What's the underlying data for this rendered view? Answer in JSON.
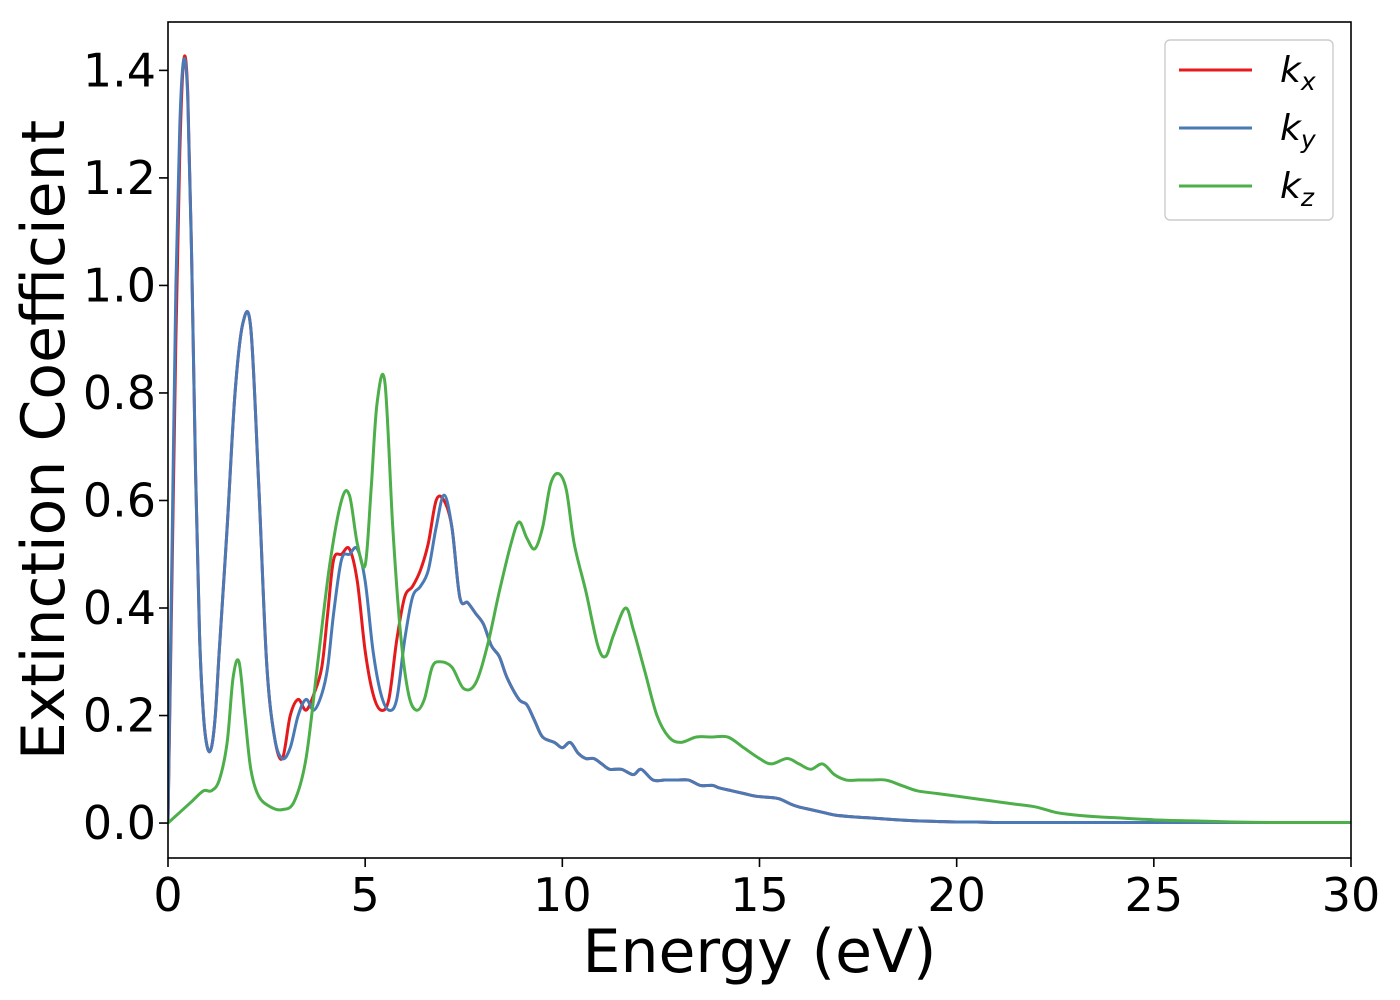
{
  "chart_data": {
    "type": "line",
    "title": "",
    "xlabel": "Energy (eV)",
    "ylabel": "Extinction Coefficient",
    "xlim": [
      0,
      30
    ],
    "ylim": [
      -0.065,
      1.49
    ],
    "xticks": [
      0,
      5,
      10,
      15,
      20,
      25,
      30
    ],
    "xtick_labels": [
      "0",
      "5",
      "10",
      "15",
      "20",
      "25",
      "30"
    ],
    "yticks": [
      0.0,
      0.2,
      0.4,
      0.6,
      0.8,
      1.0,
      1.2,
      1.4
    ],
    "ytick_labels": [
      "0.0",
      "0.2",
      "0.4",
      "0.6",
      "0.8",
      "1.0",
      "1.2",
      "1.4"
    ],
    "grid": false,
    "legend_position": "top-right",
    "series": [
      {
        "name": "k_x",
        "legend_base": "k",
        "legend_sub": "x",
        "color": "#e41a1c",
        "x": [
          0,
          0.1,
          0.2,
          0.3,
          0.4,
          0.5,
          0.6,
          0.7,
          0.8,
          0.9,
          1.0,
          1.1,
          1.2,
          1.3,
          1.5,
          1.7,
          1.9,
          2.1,
          2.3,
          2.5,
          2.7,
          2.9,
          3.1,
          3.3,
          3.5,
          3.7,
          3.9,
          4.05,
          4.2,
          4.4,
          4.6,
          4.8,
          5.0,
          5.2,
          5.4,
          5.6,
          5.8,
          6.0,
          6.2,
          6.4,
          6.6,
          6.8,
          7.0,
          7.2,
          7.4,
          7.6,
          7.8,
          8.0,
          8.2,
          8.4,
          8.6,
          8.9,
          9.1,
          9.3,
          9.5,
          9.8,
          10.0,
          10.2,
          10.4,
          10.6,
          10.8,
          11.0,
          11.2,
          11.5,
          11.8,
          12.0,
          12.3,
          12.6,
          12.9,
          13.2,
          13.5,
          13.8,
          14.0,
          14.3,
          14.6,
          14.9,
          15.2,
          15.5,
          15.8,
          16.0,
          16.3,
          16.6,
          16.9,
          17.3,
          17.7,
          18.1,
          18.5,
          19.0,
          19.5,
          20.0,
          20.5,
          21.0,
          21.5,
          22.0,
          22.5,
          23.0,
          24.0,
          25.0,
          26.0,
          27.0,
          28.0,
          29.0,
          30.0
        ],
        "values": [
          0.0,
          0.45,
          0.9,
          1.25,
          1.42,
          1.36,
          1.05,
          0.65,
          0.35,
          0.2,
          0.14,
          0.14,
          0.2,
          0.32,
          0.55,
          0.8,
          0.93,
          0.92,
          0.63,
          0.3,
          0.16,
          0.12,
          0.2,
          0.23,
          0.21,
          0.24,
          0.29,
          0.39,
          0.49,
          0.5,
          0.51,
          0.45,
          0.32,
          0.24,
          0.21,
          0.23,
          0.34,
          0.42,
          0.44,
          0.47,
          0.52,
          0.6,
          0.6,
          0.55,
          0.42,
          0.41,
          0.39,
          0.37,
          0.33,
          0.31,
          0.27,
          0.23,
          0.22,
          0.19,
          0.16,
          0.15,
          0.14,
          0.15,
          0.13,
          0.12,
          0.12,
          0.11,
          0.1,
          0.1,
          0.09,
          0.1,
          0.08,
          0.08,
          0.08,
          0.08,
          0.07,
          0.07,
          0.065,
          0.06,
          0.055,
          0.05,
          0.048,
          0.045,
          0.035,
          0.03,
          0.025,
          0.02,
          0.015,
          0.012,
          0.01,
          0.008,
          0.006,
          0.004,
          0.003,
          0.002,
          0.002,
          0.001,
          0.001,
          0.001,
          0.001,
          0.001,
          0.001,
          0.001,
          0.001,
          0.001,
          0.001,
          0.001,
          0.001
        ]
      },
      {
        "name": "k_y",
        "legend_base": "k",
        "legend_sub": "y",
        "color": "#4a7ab5",
        "x": [
          0,
          0.1,
          0.2,
          0.3,
          0.4,
          0.5,
          0.6,
          0.7,
          0.8,
          0.9,
          1.0,
          1.1,
          1.2,
          1.3,
          1.5,
          1.7,
          1.9,
          2.1,
          2.3,
          2.5,
          2.7,
          2.9,
          3.1,
          3.3,
          3.5,
          3.7,
          3.9,
          4.05,
          4.2,
          4.4,
          4.6,
          4.8,
          5.0,
          5.2,
          5.4,
          5.6,
          5.8,
          6.0,
          6.2,
          6.4,
          6.6,
          6.8,
          7.0,
          7.2,
          7.4,
          7.6,
          7.8,
          8.0,
          8.2,
          8.4,
          8.6,
          8.9,
          9.1,
          9.3,
          9.5,
          9.8,
          10.0,
          10.2,
          10.4,
          10.6,
          10.8,
          11.0,
          11.2,
          11.5,
          11.8,
          12.0,
          12.3,
          12.6,
          12.9,
          13.2,
          13.5,
          13.8,
          14.0,
          14.3,
          14.6,
          14.9,
          15.2,
          15.5,
          15.8,
          16.0,
          16.3,
          16.6,
          16.9,
          17.3,
          17.7,
          18.1,
          18.5,
          19.0,
          19.5,
          20.0,
          20.5,
          21.0,
          21.5,
          22.0,
          22.5,
          23.0,
          24.0,
          25.0,
          26.0,
          27.0,
          28.0,
          29.0,
          30.0
        ],
        "values": [
          0.0,
          0.5,
          1.0,
          1.3,
          1.42,
          1.35,
          1.05,
          0.65,
          0.35,
          0.2,
          0.14,
          0.14,
          0.2,
          0.32,
          0.55,
          0.8,
          0.93,
          0.92,
          0.63,
          0.3,
          0.16,
          0.12,
          0.14,
          0.2,
          0.23,
          0.21,
          0.24,
          0.29,
          0.39,
          0.49,
          0.5,
          0.51,
          0.45,
          0.32,
          0.24,
          0.21,
          0.23,
          0.34,
          0.42,
          0.44,
          0.47,
          0.55,
          0.61,
          0.55,
          0.42,
          0.41,
          0.39,
          0.37,
          0.33,
          0.31,
          0.27,
          0.23,
          0.22,
          0.19,
          0.16,
          0.15,
          0.14,
          0.15,
          0.13,
          0.12,
          0.12,
          0.11,
          0.1,
          0.1,
          0.09,
          0.1,
          0.08,
          0.08,
          0.08,
          0.08,
          0.07,
          0.07,
          0.065,
          0.06,
          0.055,
          0.05,
          0.048,
          0.045,
          0.035,
          0.03,
          0.025,
          0.02,
          0.015,
          0.012,
          0.01,
          0.008,
          0.006,
          0.004,
          0.003,
          0.002,
          0.002,
          0.001,
          0.001,
          0.001,
          0.001,
          0.001,
          0.001,
          0.001,
          0.001,
          0.001,
          0.001,
          0.001,
          0.001
        ]
      },
      {
        "name": "k_z",
        "legend_base": "k",
        "legend_sub": "z",
        "color": "#4daf4a",
        "x": [
          0,
          0.3,
          0.6,
          0.9,
          1.1,
          1.3,
          1.5,
          1.65,
          1.8,
          1.95,
          2.1,
          2.3,
          2.6,
          2.9,
          3.2,
          3.5,
          3.8,
          4.1,
          4.4,
          4.6,
          4.8,
          5.0,
          5.15,
          5.3,
          5.5,
          5.7,
          5.9,
          6.1,
          6.3,
          6.5,
          6.7,
          6.9,
          7.2,
          7.5,
          7.8,
          8.1,
          8.4,
          8.7,
          8.9,
          9.1,
          9.3,
          9.5,
          9.7,
          9.9,
          10.1,
          10.3,
          10.6,
          10.9,
          11.1,
          11.3,
          11.6,
          11.8,
          12.1,
          12.4,
          12.7,
          13.0,
          13.4,
          13.8,
          14.2,
          14.6,
          15.0,
          15.3,
          15.7,
          16.0,
          16.3,
          16.6,
          16.9,
          17.2,
          17.5,
          17.8,
          18.2,
          18.6,
          19.0,
          19.5,
          20.0,
          20.5,
          21.0,
          21.5,
          22.0,
          22.5,
          23.0,
          23.5,
          24.0,
          25.0,
          26.0,
          27.0,
          28.0,
          29.0,
          30.0
        ],
        "values": [
          0.0,
          0.02,
          0.04,
          0.06,
          0.06,
          0.08,
          0.15,
          0.27,
          0.3,
          0.2,
          0.1,
          0.05,
          0.03,
          0.025,
          0.04,
          0.12,
          0.3,
          0.48,
          0.6,
          0.61,
          0.52,
          0.48,
          0.62,
          0.78,
          0.82,
          0.55,
          0.35,
          0.24,
          0.21,
          0.23,
          0.29,
          0.3,
          0.29,
          0.25,
          0.26,
          0.33,
          0.43,
          0.52,
          0.56,
          0.53,
          0.51,
          0.55,
          0.63,
          0.65,
          0.62,
          0.52,
          0.43,
          0.33,
          0.31,
          0.35,
          0.4,
          0.36,
          0.28,
          0.2,
          0.16,
          0.15,
          0.16,
          0.16,
          0.16,
          0.14,
          0.12,
          0.11,
          0.12,
          0.11,
          0.1,
          0.11,
          0.09,
          0.08,
          0.08,
          0.08,
          0.08,
          0.07,
          0.06,
          0.055,
          0.05,
          0.045,
          0.04,
          0.035,
          0.03,
          0.02,
          0.015,
          0.012,
          0.01,
          0.006,
          0.004,
          0.002,
          0.001,
          0.001,
          0.001
        ]
      }
    ]
  }
}
